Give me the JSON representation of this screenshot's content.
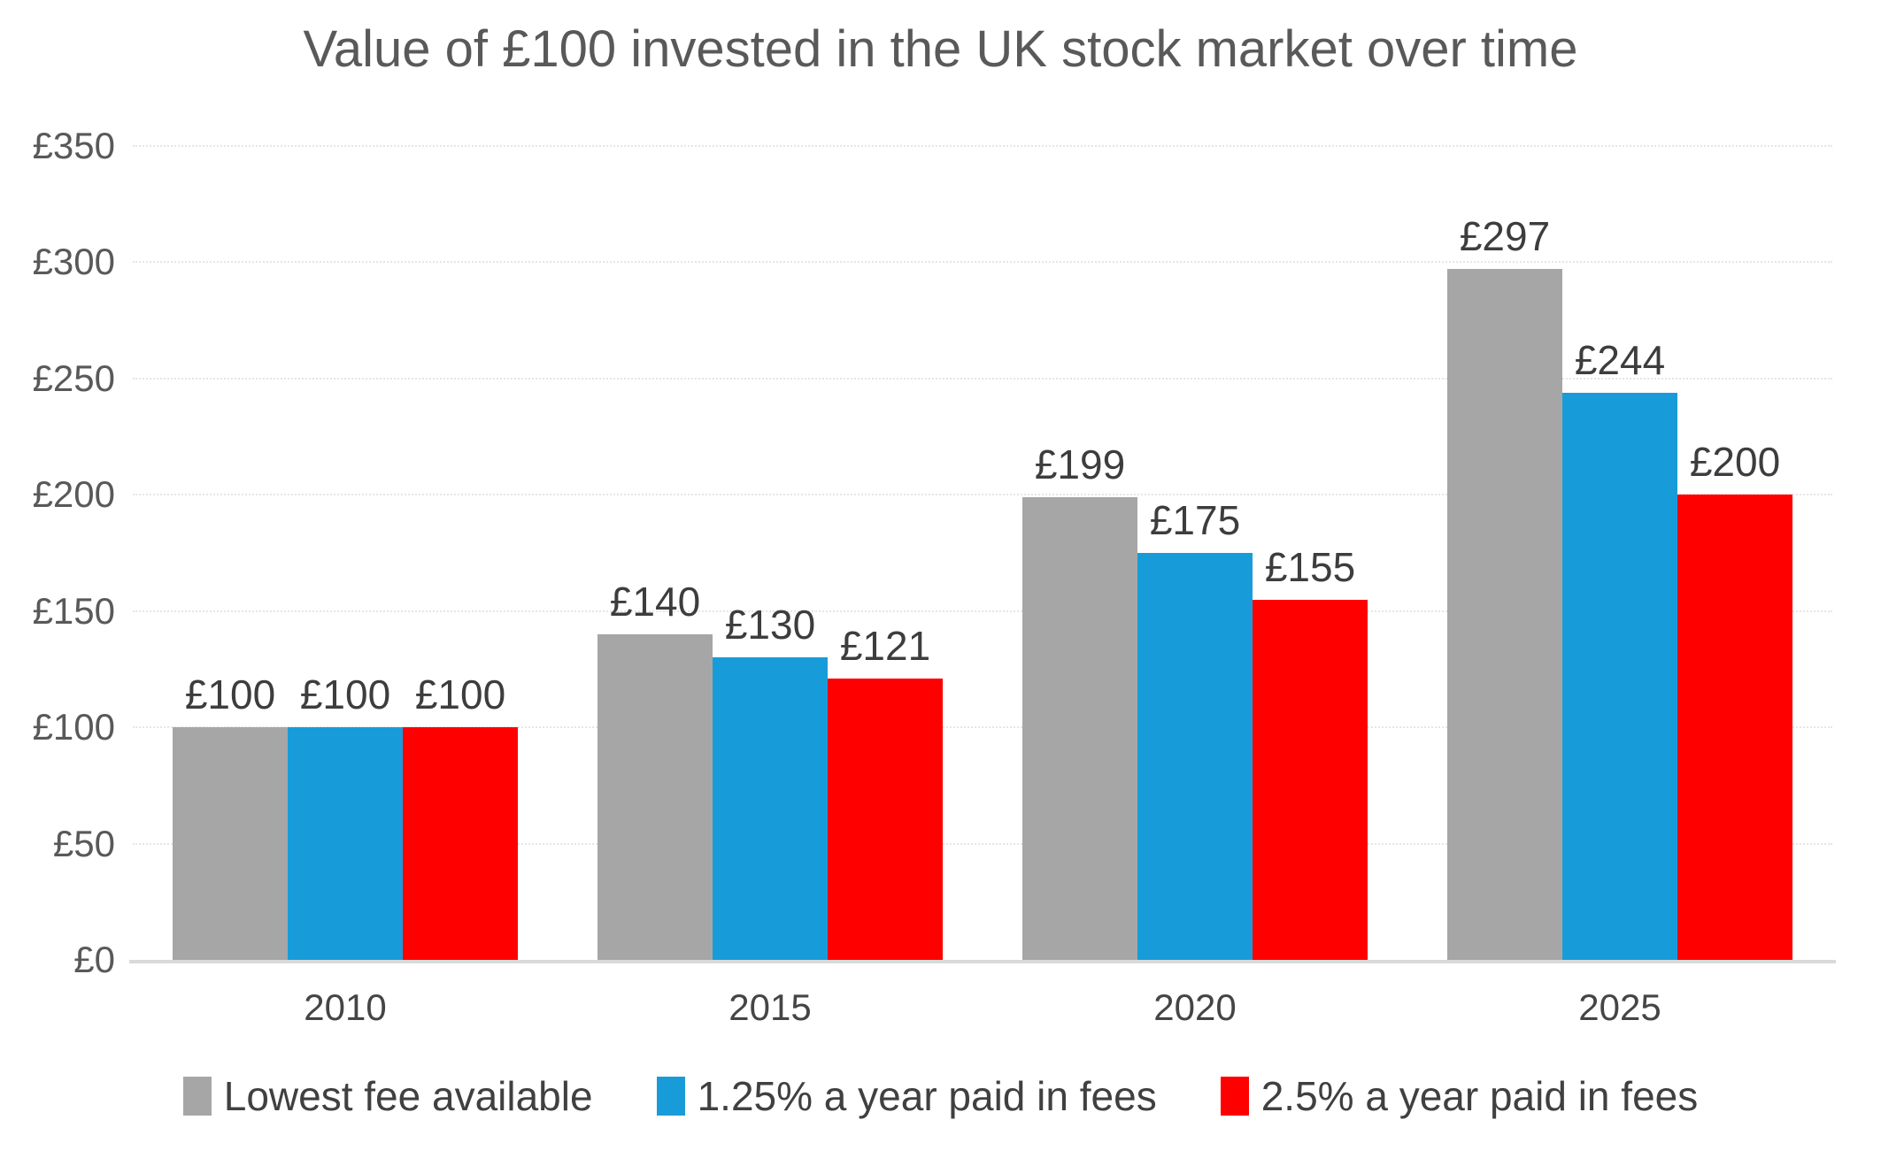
{
  "chart_data": {
    "type": "bar",
    "title": "Value of £100 invested in the UK stock market over time",
    "categories": [
      "2010",
      "2015",
      "2020",
      "2025"
    ],
    "series": [
      {
        "name": "Lowest fee available",
        "color": "#a6a6a6",
        "values": [
          100,
          140,
          199,
          297
        ],
        "labels": [
          "£100",
          "£140",
          "£199",
          "£297"
        ]
      },
      {
        "name": "1.25% a year paid in fees",
        "color": "#189cd9",
        "values": [
          100,
          130,
          175,
          244
        ],
        "labels": [
          "£100",
          "£130",
          "£175",
          "£244"
        ]
      },
      {
        "name": "2.5% a year paid in fees",
        "color": "#ff0000",
        "values": [
          100,
          121,
          155,
          200
        ],
        "labels": [
          "£100",
          "£121",
          "£155",
          "£200"
        ]
      }
    ],
    "ylim": [
      0,
      350
    ],
    "yticks": [
      0,
      50,
      100,
      150,
      200,
      250,
      300,
      350
    ],
    "ytick_labels": [
      "£0",
      "£50",
      "£100",
      "£150",
      "£200",
      "£250",
      "£300",
      "£350"
    ],
    "value_prefix": "£",
    "grid": "horizontal-dotted",
    "gridline_color": "#e7e5e3",
    "axis_line_color": "#d9d9d9",
    "title_color": "#595959",
    "label_color": "#3d3d3d",
    "legend_position": "bottom"
  }
}
